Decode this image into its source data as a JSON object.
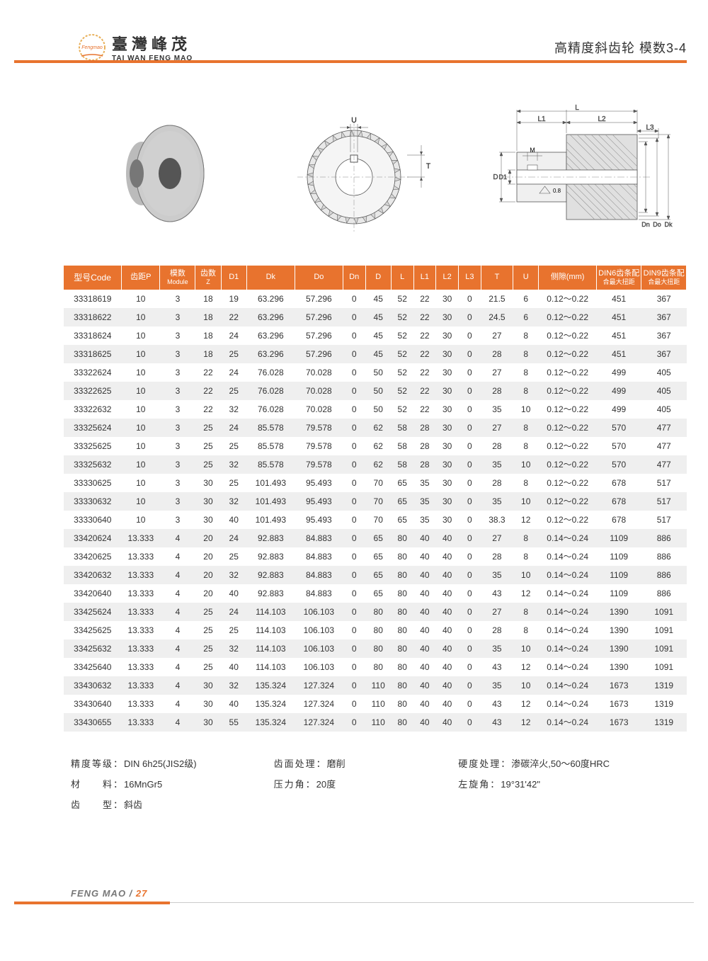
{
  "brand": {
    "cn": "臺灣峰茂",
    "en": "TAI WAN FENG MAO",
    "logo_text": "Fengmao"
  },
  "page_title": "高精度斜齿轮 模数3-4",
  "colors": {
    "accent": "#e8732e",
    "row_alt": "#efefef",
    "text": "#333333",
    "bg": "#ffffff"
  },
  "diagram_labels": {
    "U": "U",
    "T": "T",
    "L": "L",
    "L1": "L1",
    "L2": "L2",
    "L3": "L3",
    "M": "M",
    "D": "D",
    "D1": "D1",
    "Dn": "Dn",
    "Do": "Do",
    "Dk": "Dk",
    "chamfer": "0.8"
  },
  "table": {
    "headers": [
      "型号Code",
      "齿距P",
      "模数\nModule",
      "齿数\nZ",
      "D1",
      "Dk",
      "Do",
      "Dn",
      "D",
      "L",
      "L1",
      "L2",
      "L3",
      "T",
      "U",
      "侧隙(mm)",
      "DIN6齿条配\n合最大扭距",
      "DIN9齿条配\n合最大扭距"
    ],
    "col_classes": [
      "col-code",
      "col-p",
      "col-mod",
      "col-z",
      "col-d1",
      "col-dk",
      "col-do",
      "col-dn",
      "col-dd",
      "col-l",
      "col-l1",
      "col-l2",
      "col-l3",
      "col-t",
      "col-u",
      "col-back",
      "col-din6",
      "col-din9"
    ],
    "rows": [
      [
        "33318619",
        "10",
        "3",
        "18",
        "19",
        "63.296",
        "57.296",
        "0",
        "45",
        "52",
        "22",
        "30",
        "0",
        "21.5",
        "6",
        "0.12～0.22",
        "451",
        "367"
      ],
      [
        "33318622",
        "10",
        "3",
        "18",
        "22",
        "63.296",
        "57.296",
        "0",
        "45",
        "52",
        "22",
        "30",
        "0",
        "24.5",
        "6",
        "0.12～0.22",
        "451",
        "367"
      ],
      [
        "33318624",
        "10",
        "3",
        "18",
        "24",
        "63.296",
        "57.296",
        "0",
        "45",
        "52",
        "22",
        "30",
        "0",
        "27",
        "8",
        "0.12～0.22",
        "451",
        "367"
      ],
      [
        "33318625",
        "10",
        "3",
        "18",
        "25",
        "63.296",
        "57.296",
        "0",
        "45",
        "52",
        "22",
        "30",
        "0",
        "28",
        "8",
        "0.12～0.22",
        "451",
        "367"
      ],
      [
        "33322624",
        "10",
        "3",
        "22",
        "24",
        "76.028",
        "70.028",
        "0",
        "50",
        "52",
        "22",
        "30",
        "0",
        "27",
        "8",
        "0.12～0.22",
        "499",
        "405"
      ],
      [
        "33322625",
        "10",
        "3",
        "22",
        "25",
        "76.028",
        "70.028",
        "0",
        "50",
        "52",
        "22",
        "30",
        "0",
        "28",
        "8",
        "0.12～0.22",
        "499",
        "405"
      ],
      [
        "33322632",
        "10",
        "3",
        "22",
        "32",
        "76.028",
        "70.028",
        "0",
        "50",
        "52",
        "22",
        "30",
        "0",
        "35",
        "10",
        "0.12～0.22",
        "499",
        "405"
      ],
      [
        "33325624",
        "10",
        "3",
        "25",
        "24",
        "85.578",
        "79.578",
        "0",
        "62",
        "58",
        "28",
        "30",
        "0",
        "27",
        "8",
        "0.12～0.22",
        "570",
        "477"
      ],
      [
        "33325625",
        "10",
        "3",
        "25",
        "25",
        "85.578",
        "79.578",
        "0",
        "62",
        "58",
        "28",
        "30",
        "0",
        "28",
        "8",
        "0.12～0.22",
        "570",
        "477"
      ],
      [
        "33325632",
        "10",
        "3",
        "25",
        "32",
        "85.578",
        "79.578",
        "0",
        "62",
        "58",
        "28",
        "30",
        "0",
        "35",
        "10",
        "0.12～0.22",
        "570",
        "477"
      ],
      [
        "33330625",
        "10",
        "3",
        "30",
        "25",
        "101.493",
        "95.493",
        "0",
        "70",
        "65",
        "35",
        "30",
        "0",
        "28",
        "8",
        "0.12～0.22",
        "678",
        "517"
      ],
      [
        "33330632",
        "10",
        "3",
        "30",
        "32",
        "101.493",
        "95.493",
        "0",
        "70",
        "65",
        "35",
        "30",
        "0",
        "35",
        "10",
        "0.12～0.22",
        "678",
        "517"
      ],
      [
        "33330640",
        "10",
        "3",
        "30",
        "40",
        "101.493",
        "95.493",
        "0",
        "70",
        "65",
        "35",
        "30",
        "0",
        "38.3",
        "12",
        "0.12～0.22",
        "678",
        "517"
      ],
      [
        "33420624",
        "13.333",
        "4",
        "20",
        "24",
        "92.883",
        "84.883",
        "0",
        "65",
        "80",
        "40",
        "40",
        "0",
        "27",
        "8",
        "0.14～0.24",
        "1109",
        "886"
      ],
      [
        "33420625",
        "13.333",
        "4",
        "20",
        "25",
        "92.883",
        "84.883",
        "0",
        "65",
        "80",
        "40",
        "40",
        "0",
        "28",
        "8",
        "0.14～0.24",
        "1109",
        "886"
      ],
      [
        "33420632",
        "13.333",
        "4",
        "20",
        "32",
        "92.883",
        "84.883",
        "0",
        "65",
        "80",
        "40",
        "40",
        "0",
        "35",
        "10",
        "0.14～0.24",
        "1109",
        "886"
      ],
      [
        "33420640",
        "13.333",
        "4",
        "20",
        "40",
        "92.883",
        "84.883",
        "0",
        "65",
        "80",
        "40",
        "40",
        "0",
        "43",
        "12",
        "0.14～0.24",
        "1109",
        "886"
      ],
      [
        "33425624",
        "13.333",
        "4",
        "25",
        "24",
        "114.103",
        "106.103",
        "0",
        "80",
        "80",
        "40",
        "40",
        "0",
        "27",
        "8",
        "0.14～0.24",
        "1390",
        "1091"
      ],
      [
        "33425625",
        "13.333",
        "4",
        "25",
        "25",
        "114.103",
        "106.103",
        "0",
        "80",
        "80",
        "40",
        "40",
        "0",
        "28",
        "8",
        "0.14～0.24",
        "1390",
        "1091"
      ],
      [
        "33425632",
        "13.333",
        "4",
        "25",
        "32",
        "114.103",
        "106.103",
        "0",
        "80",
        "80",
        "40",
        "40",
        "0",
        "35",
        "10",
        "0.14～0.24",
        "1390",
        "1091"
      ],
      [
        "33425640",
        "13.333",
        "4",
        "25",
        "40",
        "114.103",
        "106.103",
        "0",
        "80",
        "80",
        "40",
        "40",
        "0",
        "43",
        "12",
        "0.14～0.24",
        "1390",
        "1091"
      ],
      [
        "33430632",
        "13.333",
        "4",
        "30",
        "32",
        "135.324",
        "127.324",
        "0",
        "110",
        "80",
        "40",
        "40",
        "0",
        "35",
        "10",
        "0.14～0.24",
        "1673",
        "1319"
      ],
      [
        "33430640",
        "13.333",
        "4",
        "30",
        "40",
        "135.324",
        "127.324",
        "0",
        "110",
        "80",
        "40",
        "40",
        "0",
        "43",
        "12",
        "0.14～0.24",
        "1673",
        "1319"
      ],
      [
        "33430655",
        "13.333",
        "4",
        "30",
        "55",
        "135.324",
        "127.324",
        "0",
        "110",
        "80",
        "40",
        "40",
        "0",
        "43",
        "12",
        "0.14～0.24",
        "1673",
        "1319"
      ]
    ]
  },
  "notes": [
    {
      "label": "精度等级：",
      "value": "DIN 6h25(JIS2级)"
    },
    {
      "label": "齿面处理：",
      "value": "磨削"
    },
    {
      "label": "硬度处理：",
      "value": "渗碳淬火,50～60度HRC"
    },
    {
      "label": "材　　料：",
      "value": "16MnGr5"
    },
    {
      "label": "压力角：",
      "value": "20度"
    },
    {
      "label": "左旋角：",
      "value": "19°31'42\""
    },
    {
      "label": "齿　　型：",
      "value": "斜齿"
    },
    {
      "label": "",
      "value": ""
    },
    {
      "label": "",
      "value": ""
    }
  ],
  "footer": {
    "brand": "FENG MAO",
    "sep": " / ",
    "page": "27"
  }
}
